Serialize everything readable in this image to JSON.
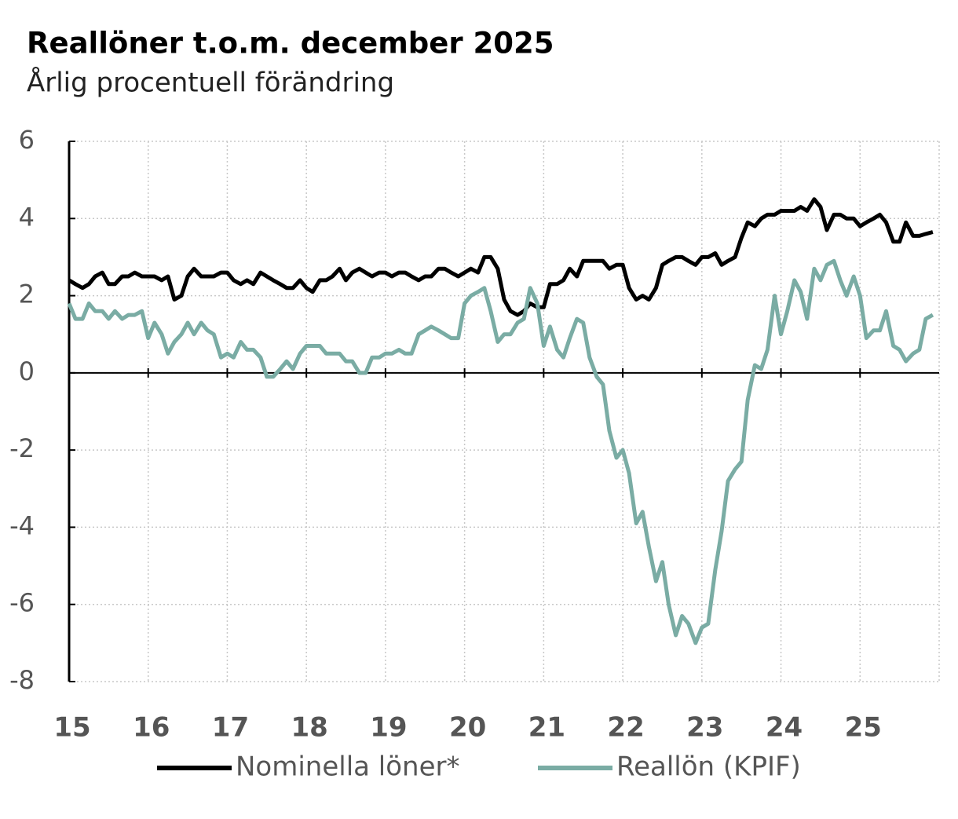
{
  "chart_data": {
    "type": "line",
    "title": "Reallöner t.o.m. december 2025",
    "subtitle": "Årlig procentuell förändring",
    "x": [
      15,
      15.08,
      15.17,
      15.25,
      15.33,
      15.42,
      15.5,
      15.58,
      15.67,
      15.75,
      15.83,
      15.92,
      16,
      16.08,
      16.17,
      16.25,
      16.33,
      16.42,
      16.5,
      16.58,
      16.67,
      16.75,
      16.83,
      16.92,
      17,
      17.08,
      17.17,
      17.25,
      17.33,
      17.42,
      17.5,
      17.58,
      17.67,
      17.75,
      17.83,
      17.92,
      18,
      18.08,
      18.17,
      18.25,
      18.33,
      18.42,
      18.5,
      18.58,
      18.67,
      18.75,
      18.83,
      18.92,
      19,
      19.08,
      19.17,
      19.25,
      19.33,
      19.42,
      19.5,
      19.58,
      19.67,
      19.75,
      19.83,
      19.92,
      20,
      20.08,
      20.17,
      20.25,
      20.33,
      20.42,
      20.5,
      20.58,
      20.67,
      20.75,
      20.83,
      20.92,
      21,
      21.08,
      21.17,
      21.25,
      21.33,
      21.42,
      21.5,
      21.58,
      21.67,
      21.75,
      21.83,
      21.92,
      22,
      22.08,
      22.17,
      22.25,
      22.33,
      22.42,
      22.5,
      22.58,
      22.67,
      22.75,
      22.83,
      22.92,
      23,
      23.08,
      23.17,
      23.25,
      23.33,
      23.42,
      23.5,
      23.58,
      23.67,
      23.75,
      23.83,
      23.92,
      24,
      24.08,
      24.17,
      24.25,
      24.33,
      24.42,
      24.5,
      24.58,
      24.67,
      24.75,
      24.83,
      24.92,
      25,
      25.08,
      25.17,
      25.25,
      25.33,
      25.42,
      25.5,
      25.58,
      25.67,
      25.75,
      25.83,
      25.92
    ],
    "series": [
      {
        "name": "Nominella löner*",
        "color": "#000000",
        "values": [
          2.4,
          2.3,
          2.2,
          2.3,
          2.5,
          2.6,
          2.3,
          2.3,
          2.5,
          2.5,
          2.6,
          2.5,
          2.5,
          2.5,
          2.4,
          2.5,
          1.9,
          2.0,
          2.5,
          2.7,
          2.5,
          2.5,
          2.5,
          2.6,
          2.6,
          2.4,
          2.3,
          2.4,
          2.3,
          2.6,
          2.5,
          2.4,
          2.3,
          2.2,
          2.2,
          2.4,
          2.2,
          2.1,
          2.4,
          2.4,
          2.5,
          2.7,
          2.4,
          2.6,
          2.7,
          2.6,
          2.5,
          2.6,
          2.6,
          2.5,
          2.6,
          2.6,
          2.5,
          2.4,
          2.5,
          2.5,
          2.7,
          2.7,
          2.6,
          2.5,
          2.6,
          2.7,
          2.6,
          3.0,
          3.0,
          2.7,
          1.9,
          1.6,
          1.5,
          1.6,
          1.8,
          1.7,
          1.7,
          2.3,
          2.3,
          2.4,
          2.7,
          2.5,
          2.9,
          2.9,
          2.9,
          2.9,
          2.7,
          2.8,
          2.8,
          2.2,
          1.9,
          2.0,
          1.9,
          2.2,
          2.8,
          2.9,
          3.0,
          3.0,
          2.9,
          2.8,
          3.0,
          3.0,
          3.1,
          2.8,
          2.9,
          3.0,
          3.5,
          3.9,
          3.8,
          4.0,
          4.1,
          4.1,
          4.2,
          4.2,
          4.2,
          4.3,
          4.2,
          4.5,
          4.3,
          3.7,
          4.1,
          4.1,
          4.0,
          4.0,
          3.8,
          3.9,
          4.0,
          4.1,
          3.9,
          3.4,
          3.4,
          3.9,
          3.55,
          3.55,
          3.6,
          3.65
        ]
      },
      {
        "name": "Reallön (KPIF)",
        "color": "#7aaca4",
        "values": [
          1.8,
          1.4,
          1.4,
          1.8,
          1.6,
          1.6,
          1.4,
          1.6,
          1.4,
          1.5,
          1.5,
          1.6,
          0.9,
          1.3,
          1.0,
          0.5,
          0.8,
          1.0,
          1.3,
          1.0,
          1.3,
          1.1,
          1.0,
          0.4,
          0.5,
          0.4,
          0.8,
          0.6,
          0.6,
          0.4,
          -0.1,
          -0.1,
          0.1,
          0.3,
          0.1,
          0.5,
          0.7,
          0.7,
          0.7,
          0.5,
          0.5,
          0.5,
          0.3,
          0.3,
          0.0,
          0.0,
          0.4,
          0.4,
          0.5,
          0.5,
          0.6,
          0.5,
          0.5,
          1.0,
          1.1,
          1.2,
          1.1,
          1.0,
          0.9,
          0.9,
          1.8,
          2.0,
          2.1,
          2.2,
          1.6,
          0.8,
          1.0,
          1.0,
          1.3,
          1.4,
          2.2,
          1.8,
          0.7,
          1.2,
          0.6,
          0.4,
          0.9,
          1.4,
          1.3,
          0.4,
          -0.1,
          -0.3,
          -1.5,
          -2.2,
          -2.0,
          -2.6,
          -3.9,
          -3.6,
          -4.5,
          -5.4,
          -4.9,
          -6.0,
          -6.8,
          -6.3,
          -6.5,
          -7.0,
          -6.6,
          -6.5,
          -5.1,
          -4.1,
          -2.8,
          -2.5,
          -2.3,
          -0.7,
          0.2,
          0.1,
          0.6,
          2.0,
          1.0,
          1.6,
          2.4,
          2.1,
          1.4,
          2.7,
          2.4,
          2.8,
          2.9,
          2.4,
          2.0,
          2.5,
          2.0,
          0.9,
          1.1,
          1.1,
          1.6,
          0.7,
          0.6,
          0.3,
          0.5,
          0.6,
          1.4,
          1.5
        ]
      }
    ],
    "xlim": [
      15,
      26
    ],
    "xticks": [
      15,
      16,
      17,
      18,
      19,
      20,
      21,
      22,
      23,
      24,
      25
    ],
    "ylim": [
      -8,
      6
    ],
    "yticks": [
      -8,
      -6,
      -4,
      -2,
      0,
      2,
      4,
      6
    ],
    "grid": true,
    "legend": "bottom"
  }
}
